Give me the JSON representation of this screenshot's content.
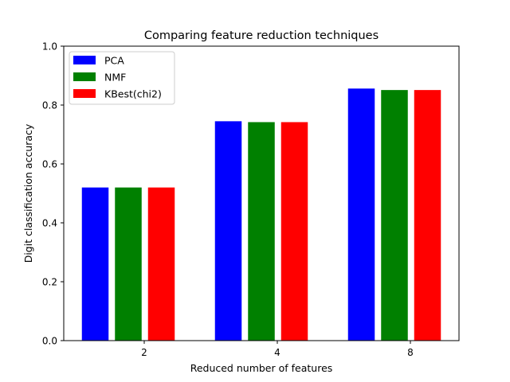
{
  "chart_data": {
    "type": "bar",
    "title": "Comparing feature reduction techniques",
    "xlabel": "Reduced number of features",
    "ylabel": "Digit classification accuracy",
    "categories": [
      "2",
      "4",
      "8"
    ],
    "series": [
      {
        "name": "PCA",
        "color": "#0000ff",
        "values": [
          0.52,
          0.745,
          0.856
        ]
      },
      {
        "name": "NMF",
        "color": "#008000",
        "values": [
          0.52,
          0.742,
          0.851
        ]
      },
      {
        "name": "KBest(chi2)",
        "color": "#ff0000",
        "values": [
          0.52,
          0.742,
          0.851
        ]
      }
    ],
    "ylim": [
      0,
      1.0
    ],
    "yticks": [
      "0.0",
      "0.2",
      "0.4",
      "0.6",
      "0.8",
      "1.0"
    ],
    "legend_position": "top-left",
    "grid": false
  }
}
